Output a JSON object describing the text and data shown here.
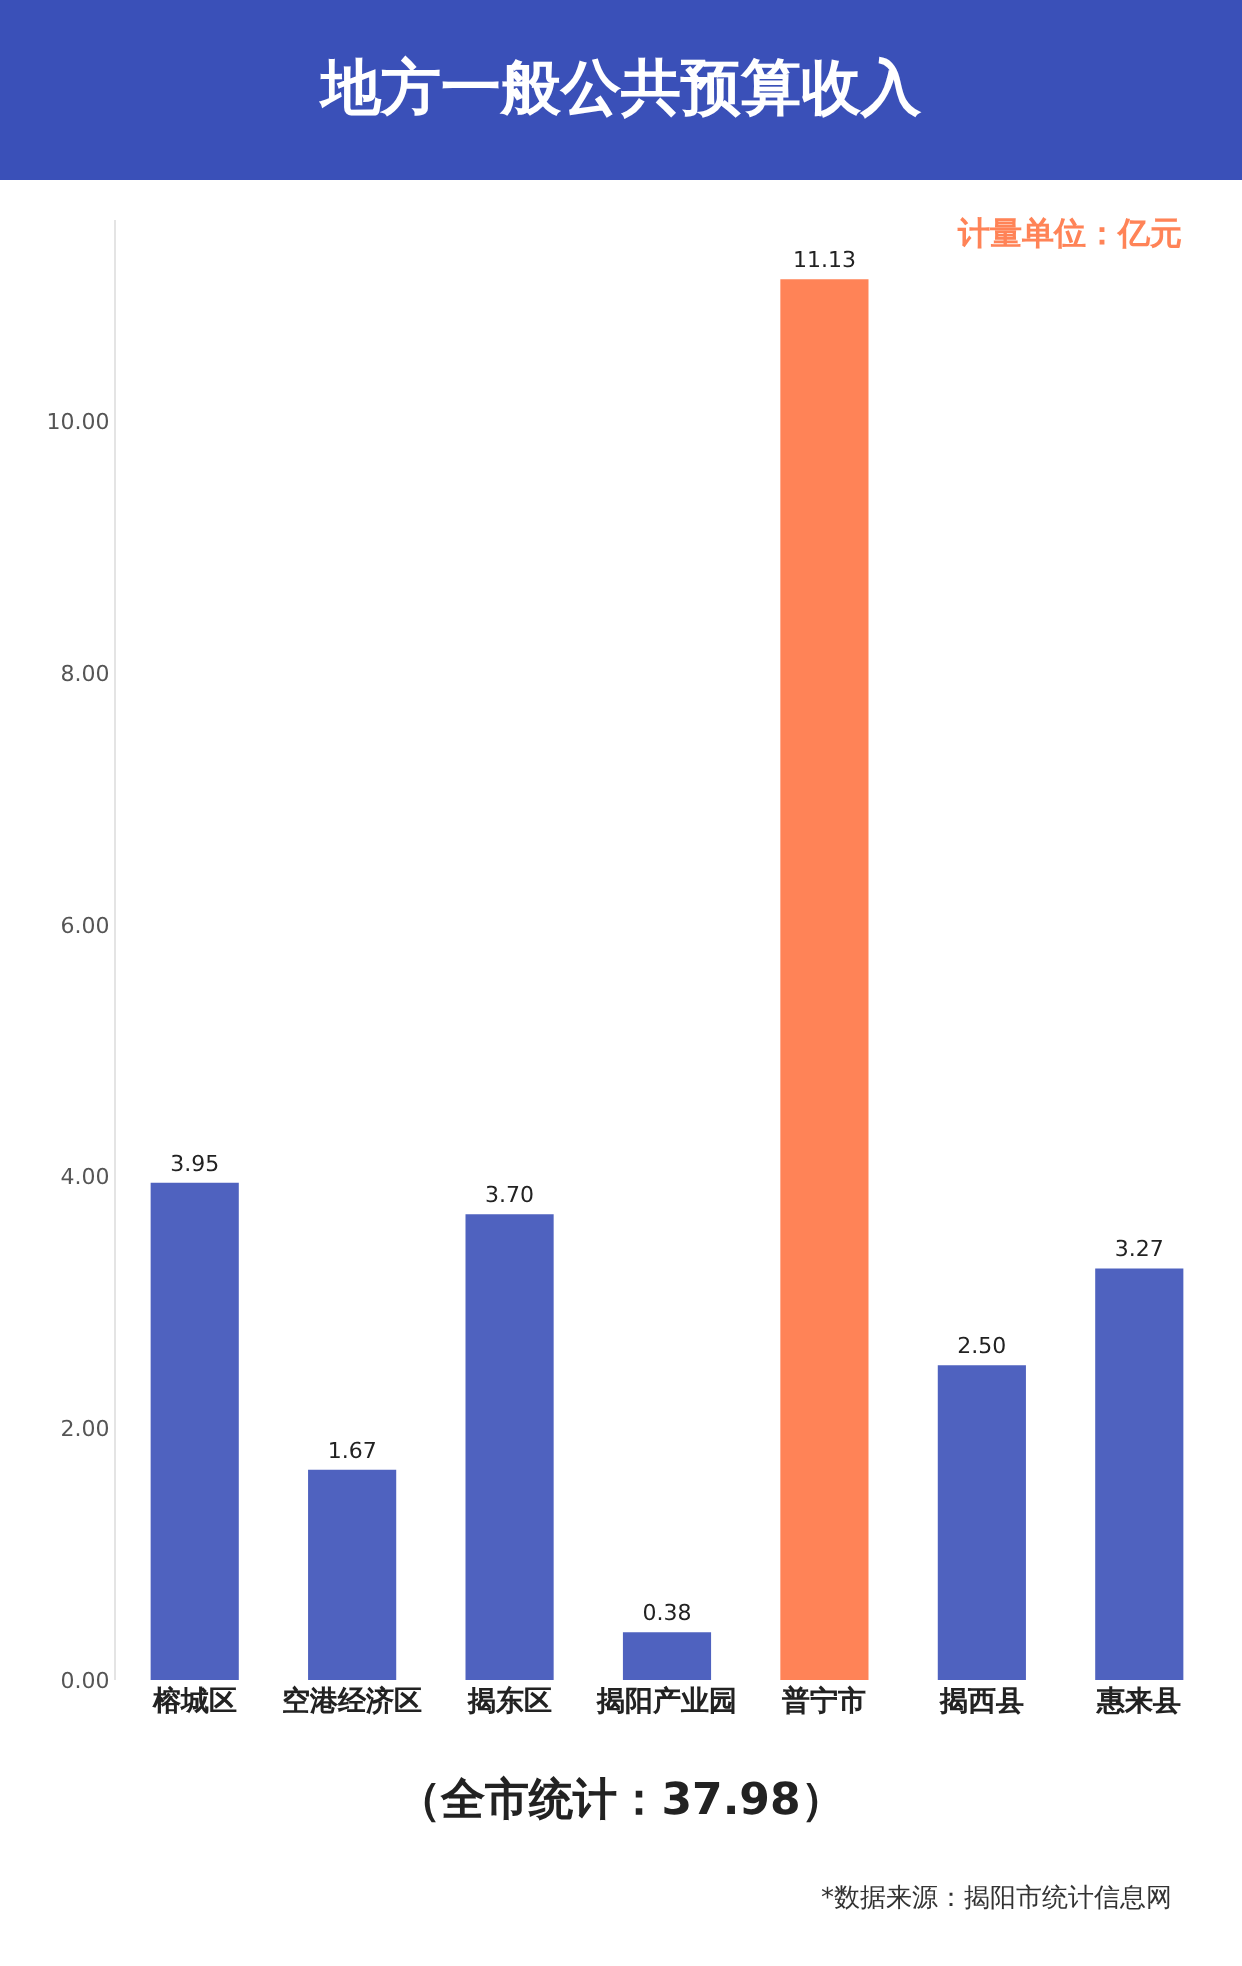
{
  "chart_data": {
    "type": "bar",
    "title": "地方一般公共预算收入",
    "categories": [
      "榕城区",
      "空港经济区",
      "揭东区",
      "揭阳产业园",
      "普宁市",
      "揭西县",
      "惠来县"
    ],
    "values": [
      3.95,
      1.67,
      3.7,
      0.38,
      11.13,
      2.5,
      3.27
    ],
    "colors": [
      "#4f62bf",
      "#4f62bf",
      "#4f62bf",
      "#4f62bf",
      "#ff8357",
      "#4f62bf",
      "#4f62bf"
    ],
    "ylim": [
      0,
      11.6
    ],
    "yticks": [
      {
        "value": 0,
        "label": "0.00"
      },
      {
        "value": 2,
        "label": "2.00"
      },
      {
        "value": 4,
        "label": "4.00"
      },
      {
        "value": 6,
        "label": "6.00"
      },
      {
        "value": 8,
        "label": "8.00"
      },
      {
        "value": 10,
        "label": "10.00"
      }
    ],
    "value_labels": [
      "3.95",
      "1.67",
      "3.70",
      "0.38",
      "11.13",
      "2.50",
      "3.27"
    ],
    "annotations": [
      "计量单位：亿元",
      "（全市统计：37.98）",
      "*数据来源：揭阳市统计信息网"
    ]
  }
}
